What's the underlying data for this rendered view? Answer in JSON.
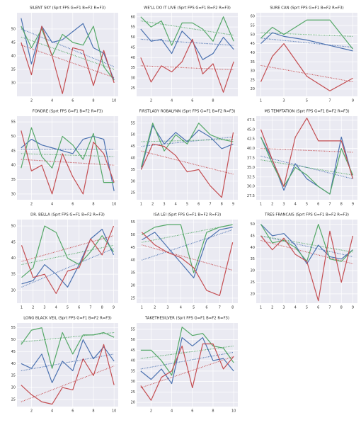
{
  "chart_data": [
    {
      "type": "line",
      "title": "SILENT SKY (Sprt FPS G=F1 B=F2 R=F3)",
      "x": [
        1,
        2,
        3,
        4,
        5,
        6,
        7,
        8,
        9,
        10
      ],
      "xlim": [
        0.6,
        10.4
      ],
      "xticks": [
        2,
        4,
        6,
        8,
        10
      ],
      "ylim": [
        25,
        56
      ],
      "yticks": [
        30,
        35,
        40,
        45,
        50
      ],
      "grid": true,
      "series": [
        {
          "color": "#4c72b0",
          "values": [
            54,
            37,
            51,
            45,
            46,
            49,
            52,
            43,
            41,
            31
          ],
          "trend": [
            50,
            36
          ]
        },
        {
          "color": "#55a868",
          "values": [
            51,
            43,
            50,
            40,
            48,
            45,
            44,
            51,
            36,
            31
          ],
          "trend": [
            47,
            35
          ]
        },
        {
          "color": "#c44e52",
          "values": [
            45,
            33,
            51,
            40,
            26,
            43,
            42,
            29,
            42,
            30
          ],
          "trend": [
            44,
            32
          ]
        }
      ]
    },
    {
      "type": "line",
      "title": "WE'LL DO IT LIVE (Sprt FPS G=F1 B=F2 R=F3)",
      "x": [
        1,
        2,
        3,
        4,
        5,
        6,
        7,
        8,
        9,
        10
      ],
      "xlim": [
        0.6,
        10.4
      ],
      "xticks": [
        2,
        4,
        6,
        8
      ],
      "ylim": [
        21,
        62
      ],
      "yticks": [
        25,
        30,
        35,
        40,
        45,
        50,
        55,
        60
      ],
      "grid": true,
      "series": [
        {
          "color": "#4c72b0",
          "values": [
            54,
            48,
            49,
            42,
            53,
            48,
            39,
            42,
            50,
            44
          ],
          "trend": [
            49,
            46
          ]
        },
        {
          "color": "#55a868",
          "values": [
            60,
            55,
            58,
            46,
            57,
            57,
            54,
            48,
            60,
            48
          ],
          "trend": [
            58,
            51
          ]
        },
        {
          "color": "#c44e52",
          "values": [
            40,
            28,
            36,
            33,
            38,
            49,
            32,
            37,
            23,
            38
          ],
          "trend": [
            36,
            34
          ]
        }
      ]
    },
    {
      "type": "line",
      "title": "SURE CAN (Sprt FPS G=F1 B=F2 R=F3)",
      "x": [
        1,
        2,
        3,
        5,
        7,
        9
      ],
      "xlim": [
        0.6,
        9.4
      ],
      "xticks": [
        1,
        3,
        5,
        7,
        9
      ],
      "ylim": [
        16,
        62
      ],
      "yticks": [
        20,
        25,
        30,
        35,
        40,
        45,
        50,
        55,
        60
      ],
      "grid": true,
      "series": [
        {
          "color": "#4c72b0",
          "values": [
            45,
            51,
            49,
            47,
            44,
            41
          ],
          "trend": [
            48,
            43
          ]
        },
        {
          "color": "#55a868",
          "values": [
            48,
            54,
            50,
            58,
            58,
            42
          ],
          "trend": [
            51,
            49
          ]
        },
        {
          "color": "#c44e52",
          "values": [
            24,
            38,
            45,
            27,
            19,
            26
          ],
          "trend": [
            33,
            24
          ]
        }
      ]
    },
    {
      "type": "line",
      "title": "FONDRE (Sprt FPS G=F1 B=F2 R=F3)",
      "x": [
        1,
        2,
        3,
        4,
        5,
        6,
        7,
        8,
        9,
        10
      ],
      "xlim": [
        0.6,
        10.4
      ],
      "xticks": [
        2,
        4,
        6,
        8,
        10
      ],
      "ylim": [
        28,
        57
      ],
      "yticks": [
        30,
        35,
        40,
        45,
        50,
        55
      ],
      "grid": true,
      "series": [
        {
          "color": "#4c72b0",
          "values": [
            46,
            49,
            47,
            46,
            45,
            44,
            49,
            50,
            49,
            31
          ],
          "trend": [
            45.5,
            45.5
          ]
        },
        {
          "color": "#55a868",
          "values": [
            39,
            53,
            43,
            39,
            50,
            47,
            42,
            51,
            34,
            34
          ],
          "trend": [
            44,
            43
          ]
        },
        {
          "color": "#c44e52",
          "values": [
            52,
            38,
            40,
            30,
            44,
            36,
            30,
            48,
            44,
            34
          ],
          "trend": [
            42,
            40
          ]
        }
      ]
    },
    {
      "type": "line",
      "title": "FIRSTLADY ROBALYNN (Sprt FPS G=F1 B=F2 R=F3)",
      "x": [
        1,
        2,
        3,
        4,
        5,
        6,
        7,
        8,
        9
      ],
      "xlim": [
        0.6,
        9.4
      ],
      "xticks": [
        1,
        2,
        3,
        4,
        5,
        6,
        7,
        8,
        9
      ],
      "ylim": [
        22,
        58
      ],
      "yticks": [
        25,
        30,
        35,
        40,
        45,
        50,
        55
      ],
      "grid": true,
      "series": [
        {
          "color": "#4c72b0",
          "values": [
            35,
            54,
            46,
            51,
            47,
            52,
            49,
            44,
            46
          ],
          "trend": [
            45,
            49
          ]
        },
        {
          "color": "#55a868",
          "values": [
            36,
            55,
            43,
            50,
            46,
            55,
            50,
            48,
            47
          ],
          "trend": [
            47,
            48
          ]
        },
        {
          "color": "#c44e52",
          "values": [
            35,
            46,
            45,
            41,
            34,
            35,
            28,
            23,
            51
          ],
          "trend": [
            43,
            33
          ]
        }
      ]
    },
    {
      "type": "line",
      "title": "MS TEMPTATION (Sprt FPS G=F1 B=F2 R=F3)",
      "x": [
        1,
        2,
        3,
        4,
        5,
        6,
        7,
        8,
        9
      ],
      "xlim": [
        0.6,
        9.4
      ],
      "xticks": [
        1,
        2,
        3,
        4,
        5,
        6,
        7,
        8,
        9
      ],
      "ylim": [
        26.5,
        48.5
      ],
      "yticks": [
        27.5,
        {
          "value": 30,
          "label": "30.0"
        },
        32.5,
        {
          "value": 35,
          "label": "35.0"
        },
        37.5,
        {
          "value": 40,
          "label": "40.0"
        },
        42.5,
        {
          "value": 45,
          "label": "45.0"
        },
        47.5
      ],
      "grid": true,
      "series": [
        {
          "color": "#4c72b0",
          "values": [
            43,
            37,
            29,
            36,
            32,
            30,
            28,
            43,
            32
          ],
          "trend": [
            38,
            32
          ]
        },
        {
          "color": "#55a868",
          "values": [
            43,
            36,
            30,
            35,
            33,
            30,
            28,
            40,
            33
          ],
          "trend": [
            37,
            33
          ]
        },
        {
          "color": "#c44e52",
          "values": [
            45,
            37,
            30,
            43,
            48,
            42,
            42,
            42,
            32
          ],
          "trend": [
            40,
            39
          ]
        }
      ]
    },
    {
      "type": "line",
      "title": "DR. BELLA (Sprt FPS G=F1 B=F2 R=F3)",
      "x": [
        1,
        2,
        3,
        4,
        5,
        6,
        7,
        8,
        9
      ],
      "xlim": [
        0.6,
        9.4
      ],
      "xticks": [
        1,
        2,
        3,
        4,
        5,
        6,
        7,
        8,
        9
      ],
      "ylim": [
        26,
        52
      ],
      "yticks": [
        30,
        35,
        40,
        45,
        50
      ],
      "grid": true,
      "series": [
        {
          "color": "#4c72b0",
          "values": [
            32,
            33,
            38,
            35,
            31,
            38,
            46,
            49,
            41
          ],
          "trend": [
            31,
            43
          ]
        },
        {
          "color": "#55a868",
          "values": [
            34,
            37,
            50,
            48,
            40,
            38,
            42,
            47,
            42
          ],
          "trend": [
            38,
            44
          ]
        },
        {
          "color": "#c44e52",
          "values": [
            44,
            34,
            35,
            29,
            36,
            37,
            46,
            41,
            50
          ],
          "trend": [
            39,
            47
          ]
        }
      ]
    },
    {
      "type": "line",
      "title": "ISA LEI (Sprt FPS G=F1 B=F2 R=F3)",
      "x": [
        1,
        2,
        3,
        4,
        5,
        6,
        7,
        8
      ],
      "xlim": [
        0.6,
        8.4
      ],
      "xticks": [
        1,
        2,
        3,
        4,
        5,
        6,
        7,
        8
      ],
      "ylim": [
        23,
        56
      ],
      "yticks": [
        25,
        30,
        35,
        40,
        45,
        50,
        55
      ],
      "grid": true,
      "series": [
        {
          "color": "#4c72b0",
          "values": [
            48,
            51,
            45,
            39,
            33,
            48,
            52,
            53
          ],
          "trend": [
            40,
            52
          ]
        },
        {
          "color": "#55a868",
          "values": [
            50,
            53,
            54,
            54,
            35,
            51,
            53,
            54
          ],
          "trend": [
            47,
            54
          ]
        },
        {
          "color": "#c44e52",
          "values": [
            51,
            46,
            43,
            41,
            37,
            28,
            26,
            47
          ],
          "trend": [
            46,
            36
          ]
        }
      ]
    },
    {
      "type": "line",
      "title": "TRES FRANCAIS (Sprt FPS G=F1 B=F2 R=F3)",
      "x": [
        1,
        2,
        3,
        4,
        5,
        6,
        7,
        8,
        9
      ],
      "xlim": [
        0.6,
        9.4
      ],
      "xticks": [
        1,
        2,
        3,
        4,
        5,
        6,
        7,
        8,
        9
      ],
      "ylim": [
        16,
        52
      ],
      "yticks": [
        20,
        25,
        30,
        35,
        40,
        45,
        50
      ],
      "grid": true,
      "series": [
        {
          "color": "#4c72b0",
          "values": [
            50,
            45,
            46,
            41,
            33,
            41,
            36,
            35,
            39
          ],
          "trend": [
            45,
            36
          ]
        },
        {
          "color": "#55a868",
          "values": [
            50,
            42,
            43,
            40,
            34,
            50,
            35,
            34,
            39
          ],
          "trend": [
            45,
            38
          ]
        },
        {
          "color": "#c44e52",
          "values": [
            45,
            39,
            44,
            37,
            34,
            17,
            47,
            25,
            45
          ],
          "trend": [
            43,
            33
          ]
        }
      ]
    },
    {
      "type": "line",
      "title": "LONG BLACK VEIL (Sprt FPS G=F1 B=F2 R=F3)",
      "x": [
        1,
        2,
        3,
        4,
        5,
        6,
        7,
        8,
        9,
        10
      ],
      "xlim": [
        0.6,
        10.4
      ],
      "xticks": [
        2,
        4,
        6,
        8,
        10
      ],
      "ylim": [
        22,
        57
      ],
      "yticks": [
        25,
        30,
        35,
        40,
        45,
        50,
        55
      ],
      "grid": true,
      "series": [
        {
          "color": "#4c72b0",
          "values": [
            40,
            38,
            44,
            32,
            41,
            37,
            50,
            42,
            47,
            41
          ],
          "trend": [
            37,
            44
          ]
        },
        {
          "color": "#55a868",
          "values": [
            48,
            54,
            55,
            38,
            53,
            44,
            52,
            52,
            53,
            51
          ],
          "trend": [
            49,
            53
          ]
        },
        {
          "color": "#c44e52",
          "values": [
            31,
            27,
            24,
            23,
            30,
            29,
            42,
            35,
            48,
            31
          ],
          "trend": [
            24,
            39
          ]
        }
      ]
    },
    {
      "type": "line",
      "title": "TAKETHESILVER (Sprt FPS G=F1 B=F2 R=F3)",
      "x": [
        1,
        2,
        3,
        4,
        5,
        6,
        7,
        8,
        9,
        10
      ],
      "xlim": [
        0.6,
        10.4
      ],
      "xticks": [
        2,
        4,
        6,
        8,
        10
      ],
      "ylim": [
        18,
        58
      ],
      "yticks": [
        20,
        25,
        30,
        35,
        40,
        45,
        50,
        55
      ],
      "grid": true,
      "series": [
        {
          "color": "#4c72b0",
          "values": [
            35,
            31,
            36,
            29,
            51,
            47,
            51,
            40,
            41,
            35
          ],
          "trend": [
            36,
            44
          ]
        },
        {
          "color": "#55a868",
          "values": [
            45,
            45,
            40,
            33,
            56,
            52,
            53,
            47,
            46,
            39
          ],
          "trend": [
            41,
            47
          ]
        },
        {
          "color": "#c44e52",
          "values": [
            28,
            21,
            32,
            35,
            47,
            27,
            48,
            48,
            36,
            42
          ],
          "trend": [
            27,
            42
          ]
        }
      ]
    }
  ]
}
